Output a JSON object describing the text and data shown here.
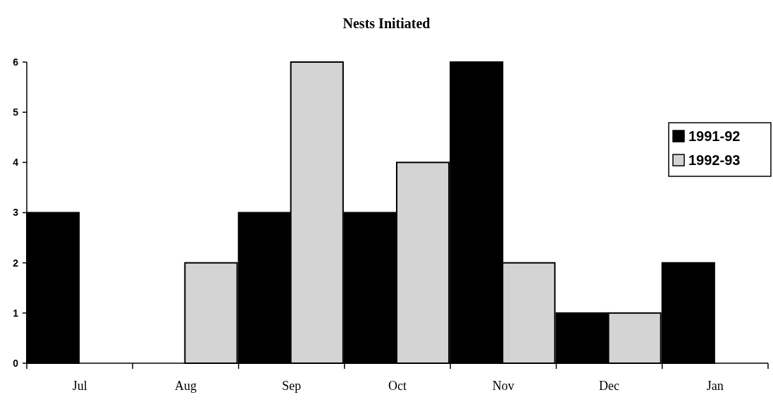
{
  "chart_data": {
    "type": "bar",
    "title": "Nests Initiated",
    "categories": [
      "Jul",
      "Aug",
      "Sep",
      "Oct",
      "Nov",
      "Dec",
      "Jan"
    ],
    "series": [
      {
        "name": "1991-92",
        "color": "#000000",
        "values": [
          3,
          0,
          3,
          3,
          6,
          1,
          2
        ]
      },
      {
        "name": "1992-93",
        "color": "#d4d4d4",
        "values": [
          0,
          2,
          6,
          4,
          2,
          1,
          0
        ]
      }
    ],
    "ylim": [
      0,
      6
    ],
    "yticks": [
      0,
      1,
      2,
      3,
      4,
      5,
      6
    ],
    "grid": false,
    "legend": "right"
  }
}
